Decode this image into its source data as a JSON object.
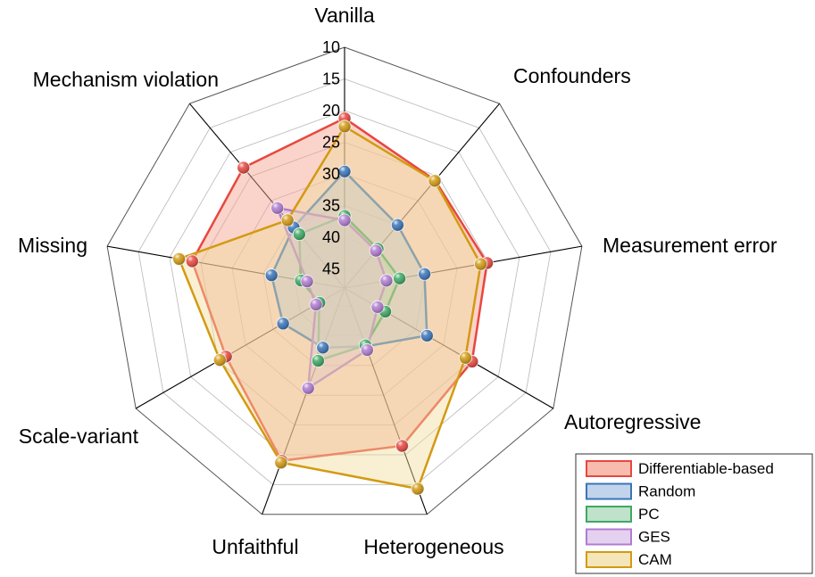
{
  "chart_data": {
    "type": "radar",
    "categories": [
      "Vanilla",
      "Confounders",
      "Measurement error",
      "Autoregressive",
      "Heterogeneous",
      "Unfaithful",
      "Scale-variant",
      "Missing",
      "Mechanism violation"
    ],
    "r_ticks": [
      10,
      15,
      20,
      25,
      30,
      35,
      40,
      45
    ],
    "r_range": [
      10,
      48
    ],
    "r_reversed": true,
    "grid": true,
    "legend_position": "bottom-right",
    "series": [
      {
        "name": "Differentiable-based",
        "color": "#e8473f",
        "fill": "#f4a08a",
        "values": [
          21.2,
          25.8,
          25.2,
          24.8,
          21.5,
          19.0,
          26.4,
          23.6,
          23.2
        ]
      },
      {
        "name": "Random",
        "color": "#3a74b8",
        "fill": "#a6c2e2",
        "values": [
          29.6,
          35.0,
          35.2,
          33.0,
          38.2,
          38.0,
          36.8,
          36.3,
          35.5
        ]
      },
      {
        "name": "PC",
        "color": "#3ea863",
        "fill": "#a4d6b4",
        "values": [
          36.6,
          39.9,
          39.2,
          40.6,
          38.4,
          35.8,
          43.4,
          41.0,
          36.9
        ]
      },
      {
        "name": "GES",
        "color": "#b07bd0",
        "fill": "#d9bdea",
        "values": [
          37.3,
          40.3,
          41.3,
          42.0,
          37.6,
          31.2,
          42.8,
          42.0,
          31.5
        ]
      },
      {
        "name": "CAM",
        "color": "#d39a12",
        "fill": "#f1dc9c",
        "values": [
          22.5,
          25.9,
          26.2,
          26.0,
          14.3,
          18.7,
          25.3,
          21.5,
          34.0
        ]
      }
    ]
  }
}
